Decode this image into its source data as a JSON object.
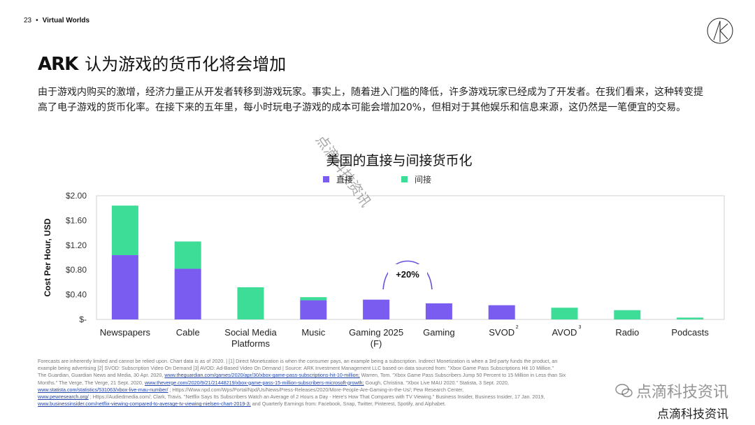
{
  "header": {
    "page_number": "23",
    "dot": "•",
    "section": "Virtual Worlds"
  },
  "title": {
    "brand": "ARK",
    "text": "认为游戏的货币化将会增加"
  },
  "body_text": "由于游戏内购买的激增，经济力量正从开发者转移到游戏玩家。事实上，随着进入门槛的降低，许多游戏玩家已经成为了开发者。在我们看来，这种转变提高了电子游戏的货币化率。在接下来的五年里，每小时玩电子游戏的成本可能会增加20%，但相对于其他娱乐和信息来源，这仍然是一笔便宜的交易。",
  "watermark_text": "点滴科技资讯",
  "chart_data": {
    "type": "bar",
    "stacked": true,
    "title": "美国的直接与间接货币化",
    "ylabel": "Cost Per Hour, USD",
    "ylim": [
      0,
      2.0
    ],
    "yticks": [
      "$-",
      "$0.40",
      "$0.80",
      "$1.20",
      "$1.60",
      "$2.00"
    ],
    "categories": [
      "Newspapers",
      "Cable",
      "Social Media Platforms",
      "Music",
      "Gaming 2025 (F)",
      "Gaming",
      "SVOD",
      "AVOD",
      "Radio",
      "Podcasts"
    ],
    "category_lines": [
      [
        "Newspapers"
      ],
      [
        "Cable"
      ],
      [
        "Social Media",
        "Platforms"
      ],
      [
        "Music"
      ],
      [
        "Gaming 2025",
        "(F)"
      ],
      [
        "Gaming"
      ],
      [
        "SVOD"
      ],
      [
        "AVOD"
      ],
      [
        "Radio"
      ],
      [
        "Podcasts"
      ]
    ],
    "superscripts": [
      "",
      "",
      "",
      "",
      "",
      "",
      "2",
      "3",
      "",
      ""
    ],
    "series": [
      {
        "name": "直接",
        "color": "#7b5cf0",
        "values": [
          1.04,
          0.82,
          0,
          0.31,
          0.32,
          0.26,
          0.23,
          0,
          0,
          0
        ]
      },
      {
        "name": "间接",
        "color": "#3ddc97",
        "values": [
          0.8,
          0.44,
          0.52,
          0.05,
          0,
          0,
          0,
          0.19,
          0.15,
          0.03
        ]
      }
    ],
    "annotation": {
      "text": "+20%"
    },
    "legend_position": "top-center",
    "grid": false
  },
  "footnote": {
    "line1": "Forecasts are inherently limited and cannot be relied upon. Chart data is as of 2020.  |  [1] Direct Monetization is when the consumer pays, an example being a subscription. Indirect Monetization is when a 3rd party funds the product,  an",
    "line2": "example being advertising  [2] SVOD: Subscription Video On Demand  [3] AVOD: Ad-Based Video On Demand   |   Source: ARK Investment Management LLC based on data sourced from: \"Xbox Game Pass Subscriptions Hit 10 Million.\"",
    "line3_a": "The Guardian, Guardian News and Media, 30 Apr. 2020, ",
    "line3_link": "www.theguardian.com/games/2020/apr/30/xbox-game-pass-subscriptions-hit-10-million;",
    "line3_b": " Warren, Tom. \"Xbox Game Pass Subscribers Jump 50 Percent to 15 Million in Less than Six",
    "line4_a": "Months.\" The Verge, The Verge, 21 Sept. 2020, ",
    "line4_link": "www.theverge.com/2020/9/21/21448219/xbox-game-pass-15-million-subscribers-microsoft-growth;",
    "line4_b": " Gough, Christina. \"Xbox Live MAU 2020.\" Statista, 3 Sept. 2020,",
    "line5_link": "www.statista.com/statistics/531063/xbox-live-mau-number/",
    "line5_b": " ; Https://Www.npd.com/Wps/Portal/Npd/Us/News/Press-Releases/2020/More-People-Are-Gaming-in-the-Us/; Pew Research Center,",
    "line6_link": "www.pewresearch.org/",
    "line6_b": " ; Https://Audiedmedia.com/; Clark, Travis. \"Netflix Says Its Subscribers Watch an Average of 2 Hours a Day - Here's How That Compares with TV Viewing.\" Business Insider, Business Insider, 17 Jan. 2019,",
    "line7_link": "www.businessinsider.com/netflix-viewing-compared-to-average-tv-viewing-nielsen-chart-2019-3;",
    "line7_b": " and Quarterly Earnings from: Facebook, Snap, Twitter, Pinterest, Spotify, and Alphabet."
  },
  "brand_watermark": {
    "line1": "点滴科技资讯",
    "line2": "点滴科技资讯"
  }
}
